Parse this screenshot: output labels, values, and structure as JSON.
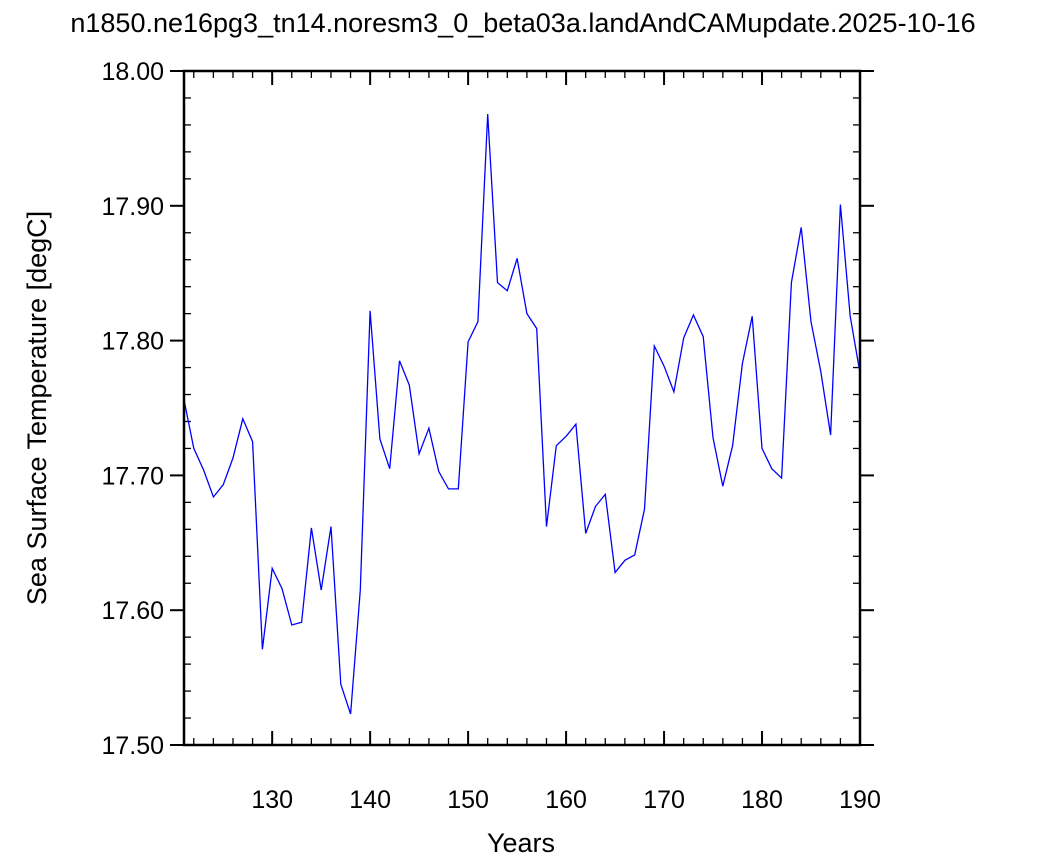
{
  "chart_data": {
    "type": "line",
    "title": "n1850.ne16pg3_tn14.noresm3_0_beta03a.landAndCAMupdate.2025-10-16",
    "xlabel": "Years",
    "ylabel": "Sea Surface Temperature [degC]",
    "xlim": [
      121,
      190
    ],
    "ylim": [
      17.5,
      18.0
    ],
    "xticks": [
      130,
      140,
      150,
      160,
      170,
      180,
      190
    ],
    "yticks": [
      17.5,
      17.6,
      17.7,
      17.8,
      17.9,
      18.0
    ],
    "ytick_labels": [
      "17.50",
      "17.60",
      "17.70",
      "17.80",
      "17.90",
      "18.00"
    ],
    "grid": false,
    "series": [
      {
        "color": "#0000ff",
        "x": [
          121,
          122,
          123,
          124,
          125,
          126,
          127,
          128,
          129,
          130,
          131,
          132,
          133,
          134,
          135,
          136,
          137,
          138,
          139,
          140,
          141,
          142,
          143,
          144,
          145,
          146,
          147,
          148,
          149,
          150,
          151,
          152,
          153,
          154,
          155,
          156,
          157,
          158,
          159,
          160,
          161,
          162,
          163,
          164,
          165,
          166,
          167,
          168,
          169,
          170,
          171,
          172,
          173,
          174,
          175,
          176,
          177,
          178,
          179,
          180,
          181,
          182,
          183,
          184,
          185,
          186,
          187,
          188,
          189,
          190
        ],
        "y": [
          17.756,
          17.72,
          17.704,
          17.684,
          17.693,
          17.713,
          17.742,
          17.725,
          17.571,
          17.631,
          17.616,
          17.589,
          17.591,
          17.661,
          17.615,
          17.662,
          17.545,
          17.523,
          17.615,
          17.822,
          17.727,
          17.705,
          17.785,
          17.767,
          17.716,
          17.735,
          17.703,
          17.69,
          17.69,
          17.799,
          17.814,
          17.968,
          17.843,
          17.837,
          17.861,
          17.82,
          17.809,
          17.662,
          17.722,
          17.729,
          17.738,
          17.657,
          17.677,
          17.686,
          17.628,
          17.637,
          17.641,
          17.675,
          17.796,
          17.781,
          17.762,
          17.802,
          17.819,
          17.803,
          17.728,
          17.692,
          17.722,
          17.783,
          17.818,
          17.72,
          17.705,
          17.698,
          17.843,
          17.884,
          17.814,
          17.777,
          17.73,
          17.901,
          17.818,
          17.776
        ]
      }
    ]
  }
}
